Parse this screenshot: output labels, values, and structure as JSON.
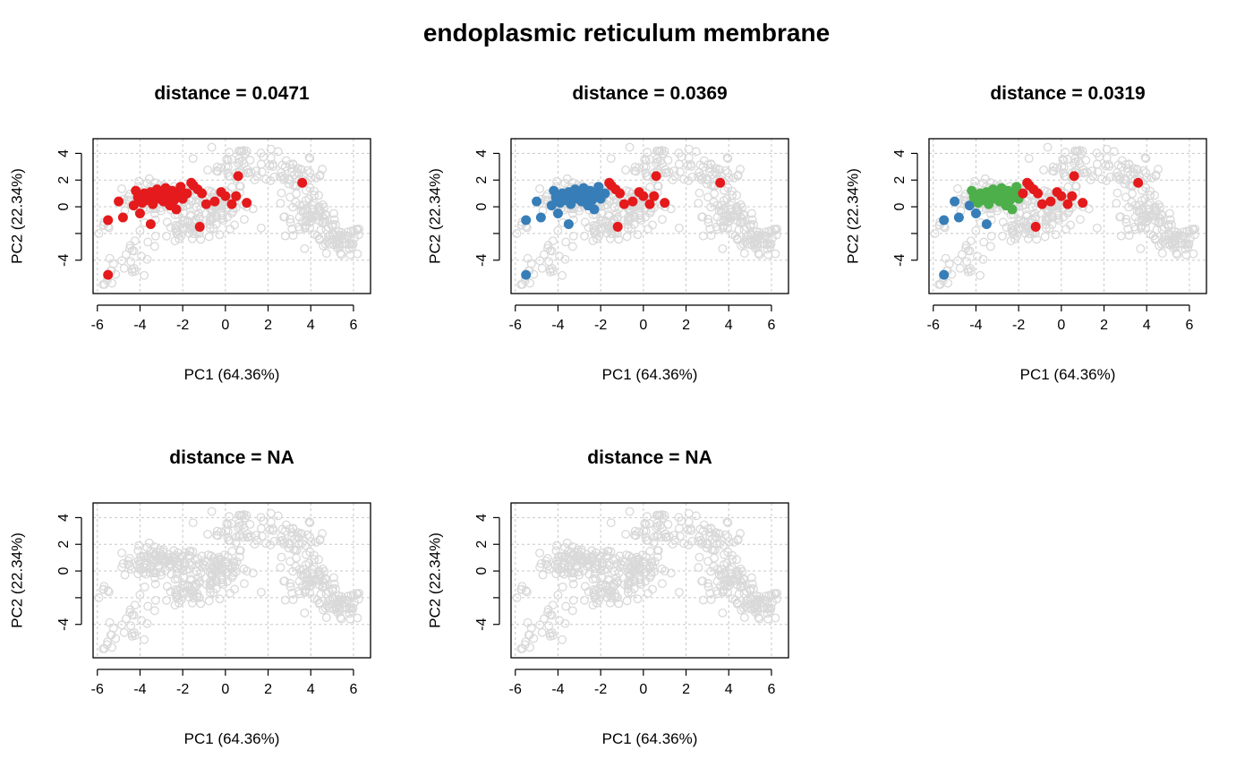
{
  "figure": {
    "title": "endoplasmic reticulum membrane",
    "background_marker_color": "#d9d9d9"
  },
  "chart_data": [
    {
      "type": "scatter",
      "title": "distance =  0.0471",
      "xlabel": "PC1 (64.36%)",
      "ylabel": "PC2 (22.34%)",
      "xlim": [
        -6.2,
        6.8
      ],
      "ylim": [
        -6.5,
        5.1
      ],
      "xticks": [
        -6,
        -4,
        -2,
        0,
        2,
        4,
        6
      ],
      "yticks": [
        -4,
        0,
        2,
        4
      ],
      "grid": true,
      "series": [
        {
          "color": "#e41a1c",
          "filled": true,
          "points": [
            [
              -5.5,
              -1.0
            ],
            [
              -5.0,
              0.4
            ],
            [
              -4.8,
              -0.8
            ],
            [
              -4.3,
              0.1
            ],
            [
              -4.2,
              1.2
            ],
            [
              -4.1,
              0.7
            ],
            [
              -4.0,
              -0.5
            ],
            [
              -3.9,
              0.3
            ],
            [
              -3.8,
              1.0
            ],
            [
              -3.7,
              0.5
            ],
            [
              -3.6,
              0.9
            ],
            [
              -3.5,
              1.1
            ],
            [
              -3.4,
              0.2
            ],
            [
              -3.3,
              0.8
            ],
            [
              -3.2,
              1.3
            ],
            [
              -3.1,
              0.6
            ],
            [
              -3.0,
              1.0
            ],
            [
              -2.9,
              0.4
            ],
            [
              -2.8,
              1.4
            ],
            [
              -2.7,
              0.7
            ],
            [
              -2.6,
              0.1
            ],
            [
              -2.5,
              1.2
            ],
            [
              -2.4,
              0.5
            ],
            [
              -2.3,
              -0.2
            ],
            [
              -2.2,
              0.9
            ],
            [
              -2.1,
              1.5
            ],
            [
              -2.0,
              0.6
            ],
            [
              -1.8,
              1.0
            ],
            [
              -1.6,
              1.8
            ],
            [
              -1.5,
              1.6
            ],
            [
              -1.3,
              1.3
            ],
            [
              -1.1,
              1.0
            ],
            [
              -0.9,
              0.2
            ],
            [
              -0.5,
              0.4
            ],
            [
              -0.2,
              1.1
            ],
            [
              0.0,
              0.8
            ],
            [
              0.3,
              0.2
            ],
            [
              0.5,
              0.8
            ],
            [
              1.0,
              0.3
            ],
            [
              0.6,
              2.3
            ],
            [
              -3.5,
              -1.3
            ],
            [
              -1.2,
              -1.5
            ],
            [
              3.6,
              1.8
            ],
            [
              -5.5,
              -5.1
            ]
          ]
        }
      ]
    },
    {
      "type": "scatter",
      "title": "distance =  0.0369",
      "xlabel": "PC1 (64.36%)",
      "ylabel": "PC2 (22.34%)",
      "xlim": [
        -6.2,
        6.8
      ],
      "ylim": [
        -6.5,
        5.1
      ],
      "xticks": [
        -6,
        -4,
        -2,
        0,
        2,
        4,
        6
      ],
      "yticks": [
        -4,
        0,
        2,
        4
      ],
      "grid": true,
      "series": [
        {
          "color": "#377eb8",
          "filled": true,
          "points": [
            [
              -5.5,
              -1.0
            ],
            [
              -5.0,
              0.4
            ],
            [
              -4.8,
              -0.8
            ],
            [
              -4.3,
              0.1
            ],
            [
              -4.2,
              1.2
            ],
            [
              -4.1,
              0.7
            ],
            [
              -4.0,
              -0.5
            ],
            [
              -3.9,
              0.3
            ],
            [
              -3.8,
              1.0
            ],
            [
              -3.7,
              0.5
            ],
            [
              -3.6,
              0.9
            ],
            [
              -3.5,
              1.1
            ],
            [
              -3.4,
              0.2
            ],
            [
              -3.3,
              0.8
            ],
            [
              -3.2,
              1.3
            ],
            [
              -3.1,
              0.6
            ],
            [
              -3.0,
              1.0
            ],
            [
              -2.9,
              0.4
            ],
            [
              -2.8,
              1.4
            ],
            [
              -2.7,
              0.7
            ],
            [
              -2.6,
              0.1
            ],
            [
              -2.5,
              1.2
            ],
            [
              -2.4,
              0.5
            ],
            [
              -2.3,
              -0.2
            ],
            [
              -2.2,
              0.9
            ],
            [
              -2.1,
              1.5
            ],
            [
              -2.0,
              0.6
            ],
            [
              -1.8,
              1.0
            ],
            [
              -3.5,
              -1.3
            ],
            [
              -5.5,
              -5.1
            ]
          ]
        },
        {
          "color": "#e41a1c",
          "filled": true,
          "points": [
            [
              -1.6,
              1.8
            ],
            [
              -1.5,
              1.6
            ],
            [
              -1.3,
              1.3
            ],
            [
              -1.1,
              1.0
            ],
            [
              -0.9,
              0.2
            ],
            [
              -0.5,
              0.4
            ],
            [
              -0.2,
              1.1
            ],
            [
              0.0,
              0.8
            ],
            [
              0.3,
              0.2
            ],
            [
              0.5,
              0.8
            ],
            [
              1.0,
              0.3
            ],
            [
              0.6,
              2.3
            ],
            [
              -1.2,
              -1.5
            ],
            [
              3.6,
              1.8
            ]
          ]
        }
      ]
    },
    {
      "type": "scatter",
      "title": "distance =  0.0319",
      "xlabel": "PC1 (64.36%)",
      "ylabel": "PC2 (22.34%)",
      "xlim": [
        -6.2,
        6.8
      ],
      "ylim": [
        -6.5,
        5.1
      ],
      "xticks": [
        -6,
        -4,
        -2,
        0,
        2,
        4,
        6
      ],
      "yticks": [
        -4,
        0,
        2,
        4
      ],
      "grid": true,
      "series": [
        {
          "color": "#377eb8",
          "filled": true,
          "points": [
            [
              -5.5,
              -1.0
            ],
            [
              -5.0,
              0.4
            ],
            [
              -4.8,
              -0.8
            ],
            [
              -4.3,
              0.1
            ],
            [
              -4.0,
              -0.5
            ],
            [
              -3.5,
              -1.3
            ],
            [
              -5.5,
              -5.1
            ]
          ]
        },
        {
          "color": "#4daf4a",
          "filled": true,
          "points": [
            [
              -4.2,
              1.2
            ],
            [
              -4.1,
              0.7
            ],
            [
              -3.9,
              0.3
            ],
            [
              -3.8,
              1.0
            ],
            [
              -3.7,
              0.5
            ],
            [
              -3.6,
              0.9
            ],
            [
              -3.5,
              1.1
            ],
            [
              -3.4,
              0.2
            ],
            [
              -3.3,
              0.8
            ],
            [
              -3.2,
              1.3
            ],
            [
              -3.1,
              0.6
            ],
            [
              -3.0,
              1.0
            ],
            [
              -2.9,
              0.4
            ],
            [
              -2.8,
              1.4
            ],
            [
              -2.7,
              0.7
            ],
            [
              -2.6,
              0.1
            ],
            [
              -2.5,
              1.2
            ],
            [
              -2.4,
              0.5
            ],
            [
              -2.3,
              -0.2
            ],
            [
              -2.2,
              0.9
            ],
            [
              -2.1,
              1.5
            ],
            [
              -2.0,
              0.6
            ],
            [
              -2.1,
              1.0
            ]
          ]
        },
        {
          "color": "#e41a1c",
          "filled": true,
          "points": [
            [
              -1.8,
              1.0
            ],
            [
              -1.6,
              1.8
            ],
            [
              -1.5,
              1.6
            ],
            [
              -1.3,
              1.3
            ],
            [
              -1.1,
              1.0
            ],
            [
              -0.9,
              0.2
            ],
            [
              -0.5,
              0.4
            ],
            [
              -0.2,
              1.1
            ],
            [
              0.0,
              0.8
            ],
            [
              0.3,
              0.2
            ],
            [
              0.5,
              0.8
            ],
            [
              1.0,
              0.3
            ],
            [
              0.6,
              2.3
            ],
            [
              -1.2,
              -1.5
            ],
            [
              3.6,
              1.8
            ]
          ]
        }
      ]
    },
    {
      "type": "scatter",
      "title": "distance =  NA",
      "xlabel": "PC1 (64.36%)",
      "ylabel": "PC2 (22.34%)",
      "xlim": [
        -6.2,
        6.8
      ],
      "ylim": [
        -6.5,
        5.1
      ],
      "xticks": [
        -6,
        -4,
        -2,
        0,
        2,
        4,
        6
      ],
      "yticks": [
        -4,
        0,
        2,
        4
      ],
      "grid": true,
      "series": []
    },
    {
      "type": "scatter",
      "title": "distance =  NA",
      "xlabel": "PC1 (64.36%)",
      "ylabel": "PC2 (22.34%)",
      "xlim": [
        -6.2,
        6.8
      ],
      "ylim": [
        -6.5,
        5.1
      ],
      "xticks": [
        -6,
        -4,
        -2,
        0,
        2,
        4,
        6
      ],
      "yticks": [
        -4,
        0,
        2,
        4
      ],
      "grid": true,
      "series": []
    }
  ]
}
